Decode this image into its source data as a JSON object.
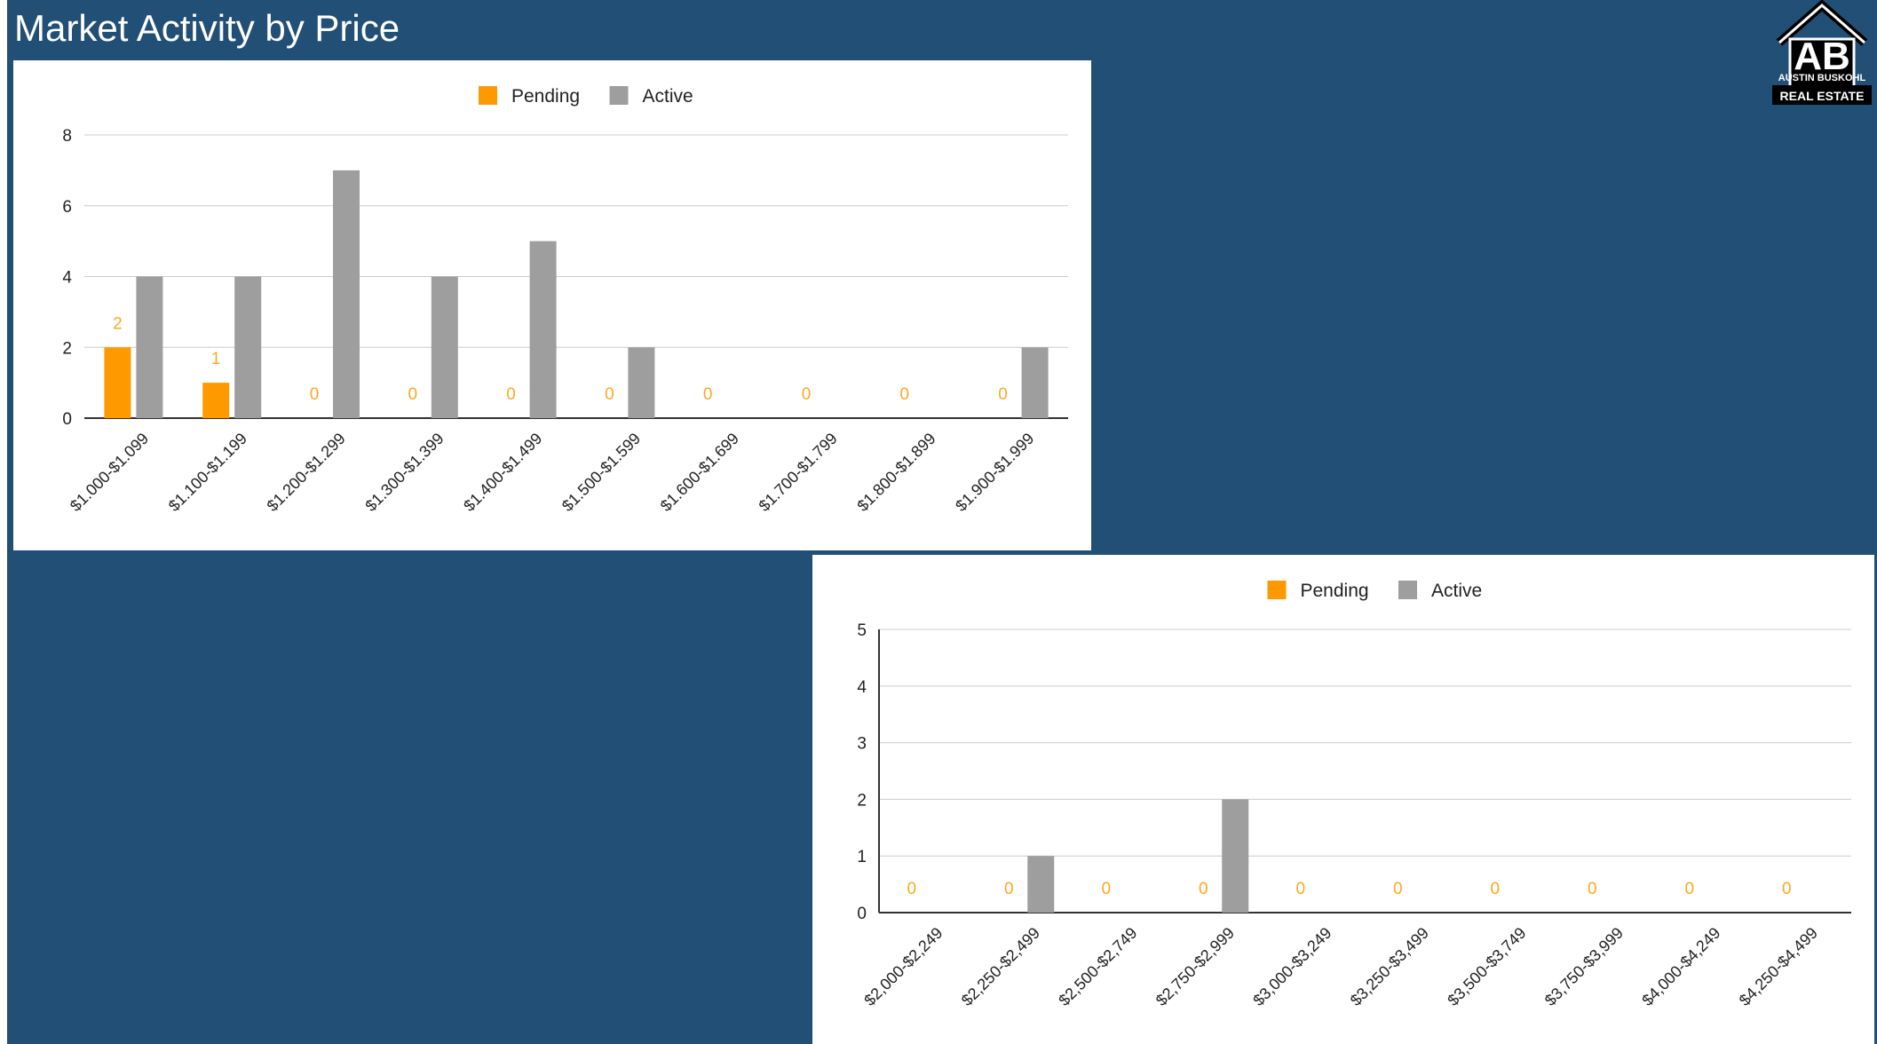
{
  "title": "Market Activity by Price",
  "logo": {
    "line1": "AUSTIN BUSKOHL",
    "line2": "REAL ESTATE",
    "monogram": "AB",
    "icon": "house-logo-icon"
  },
  "colors": {
    "background": "#224f75",
    "pending": "#ff9900",
    "active": "#9e9e9e",
    "pending_label": "#ffa820"
  },
  "chart_data": [
    {
      "type": "bar",
      "categories": [
        "$1.000-$1.099",
        "$1.100-$1.199",
        "$1.200-$1.299",
        "$1.300-$1.399",
        "$1.400-$1.499",
        "$1.500-$1.599",
        "$1.600-$1.699",
        "$1.700-$1.799",
        "$1.800-$1.899",
        "$1.900-$1.999"
      ],
      "series": [
        {
          "name": "Pending",
          "values": [
            2,
            1,
            0,
            0,
            0,
            0,
            0,
            0,
            0,
            0
          ]
        },
        {
          "name": "Active",
          "values": [
            4,
            4,
            7,
            4,
            5,
            2,
            0,
            0,
            0,
            2
          ]
        }
      ],
      "ylim": [
        0,
        8
      ],
      "yticks": [
        0,
        2,
        4,
        6,
        8
      ],
      "data_labels_series": "Pending",
      "legend": "top-center",
      "grid": true
    },
    {
      "type": "bar",
      "categories": [
        "$2,000-$2,249",
        "$2,250-$2,499",
        "$2,500-$2,749",
        "$2,750-$2,999",
        "$3,000-$3,249",
        "$3,250-$3,499",
        "$3,500-$3,749",
        "$3,750-$3,999",
        "$4,000-$4,249",
        "$4,250-$4,499"
      ],
      "series": [
        {
          "name": "Pending",
          "values": [
            0,
            0,
            0,
            0,
            0,
            0,
            0,
            0,
            0,
            0
          ]
        },
        {
          "name": "Active",
          "values": [
            0,
            1,
            0,
            2,
            0,
            0,
            0,
            0,
            0,
            0
          ]
        }
      ],
      "ylim": [
        0,
        5
      ],
      "yticks": [
        0,
        1,
        2,
        3,
        4,
        5
      ],
      "data_labels_series": "Pending",
      "legend": "top-center",
      "grid": true
    }
  ]
}
